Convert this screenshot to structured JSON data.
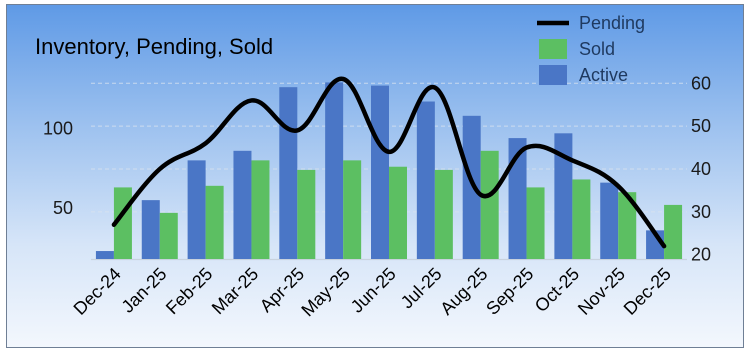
{
  "chart_data": {
    "type": "bar",
    "title": "Inventory, Pending, Sold",
    "categories": [
      "Dec-24",
      "Jan-25",
      "Feb-25",
      "Mar-25",
      "Apr-25",
      "May-25",
      "Jun-25",
      "Jul-25",
      "Aug-25",
      "Sep-25",
      "Oct-25",
      "Nov-25",
      "Dec-25"
    ],
    "series": [
      {
        "name": "Active",
        "kind": "bar",
        "axis": "left",
        "color": "#4a76c6",
        "values": [
          23,
          55,
          80,
          86,
          126,
          129,
          127,
          117,
          108,
          94,
          97,
          66,
          36
        ]
      },
      {
        "name": "Sold",
        "kind": "bar",
        "axis": "left",
        "color": "#5cbf62",
        "values": [
          63,
          47,
          64,
          80,
          74,
          80,
          76,
          74,
          86,
          63,
          68,
          60,
          52
        ]
      },
      {
        "name": "Pending",
        "kind": "line",
        "axis": "right",
        "color": "#000000",
        "values": [
          27,
          40,
          46,
          56,
          49,
          61,
          44,
          59,
          34,
          45,
          42,
          36,
          22
        ]
      }
    ],
    "y_left": {
      "ticks": [
        50,
        100
      ],
      "ylim": [
        18,
        150
      ]
    },
    "y_right": {
      "ticks": [
        20,
        30,
        40,
        50,
        60
      ],
      "ylim": [
        19,
        68
      ]
    },
    "grid": "horizontal-dashed",
    "legend": {
      "position": "top-right",
      "order": [
        "Pending",
        "Sold",
        "Active"
      ]
    }
  }
}
